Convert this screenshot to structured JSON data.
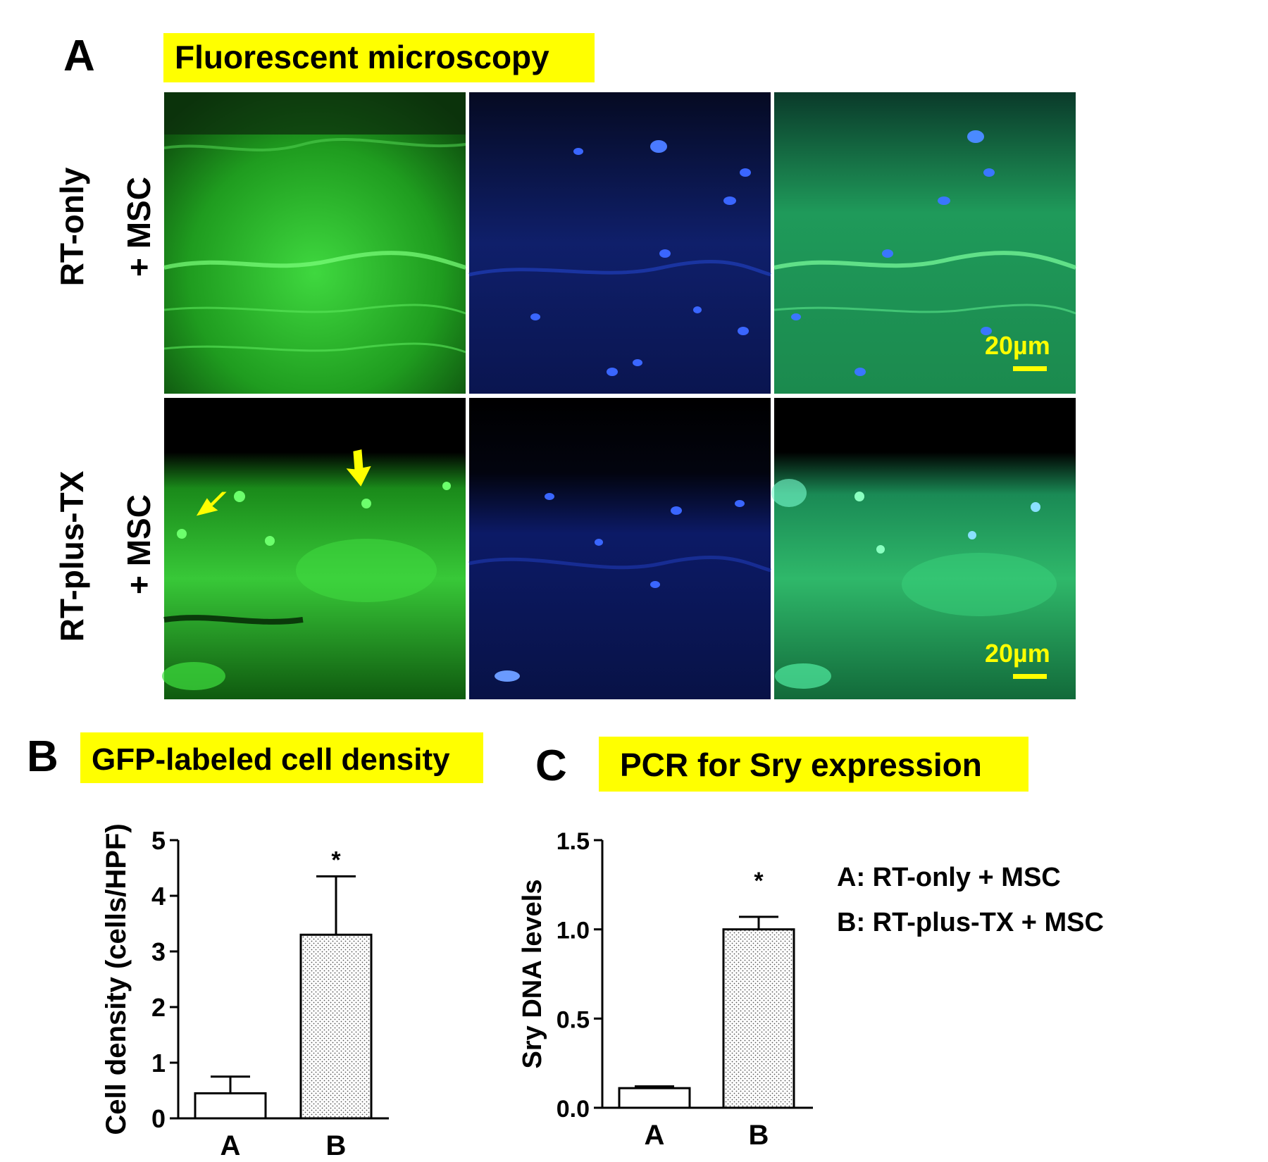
{
  "panel_a": {
    "letter": "A",
    "title": "Fluorescent microscopy",
    "rows": [
      {
        "line1": "RT-only",
        "line2": "+ MSC",
        "scale_bar": "20µm"
      },
      {
        "line1": "RT-plus-TX",
        "line2": "+ MSC",
        "scale_bar": "20µm"
      }
    ],
    "channels": [
      "green",
      "blue",
      "merged"
    ]
  },
  "legend": {
    "a": "A: RT-only + MSC",
    "b": "B: RT-plus-TX + MSC"
  },
  "colors": {
    "highlight": "#ffff00",
    "gfp_green": "#33d933",
    "dapi_blue": "#2a4ff0",
    "arrow": "#ffff00"
  },
  "chart_data": [
    {
      "panel": "B",
      "title": "GFP-labeled cell density",
      "type": "bar",
      "categories": [
        "A",
        "B"
      ],
      "values": [
        0.45,
        3.3
      ],
      "error": [
        0.3,
        1.05
      ],
      "significance": [
        "",
        "*"
      ],
      "ylabel": "Cell density (cells/HPF)",
      "xlabel": "",
      "ylim": [
        0,
        5
      ],
      "yticks": [
        "0",
        "1",
        "2",
        "3",
        "4",
        "5"
      ]
    },
    {
      "panel": "C",
      "title": "PCR for Sry expression",
      "type": "bar",
      "categories": [
        "A",
        "B"
      ],
      "values": [
        0.11,
        1.0
      ],
      "error": [
        0.01,
        0.07
      ],
      "significance": [
        "",
        "*"
      ],
      "ylabel": "Sry DNA levels",
      "xlabel": "",
      "ylim": [
        0,
        1.5
      ],
      "yticks": [
        "0.0",
        "0.5",
        "1.0",
        "1.5"
      ]
    }
  ]
}
